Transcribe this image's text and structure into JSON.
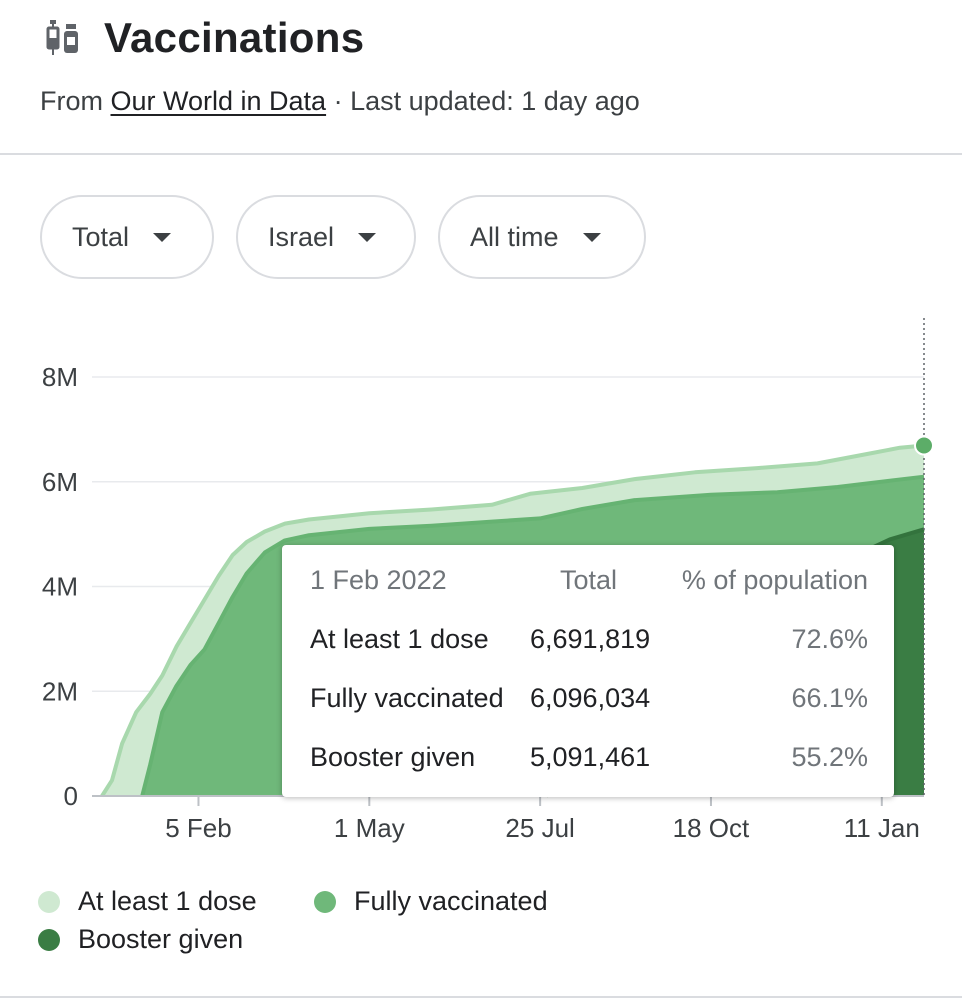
{
  "header": {
    "title": "Vaccinations",
    "icon": "vaccine-icon",
    "source_prefix": "From ",
    "source_link": "Our World in Data",
    "updated": " · Last updated: 1 day ago"
  },
  "filters": [
    {
      "label": "Total"
    },
    {
      "label": "Israel"
    },
    {
      "label": "All time"
    }
  ],
  "tooltip": {
    "date": "1 Feb 2022",
    "col_total": "Total",
    "col_pct": "% of population",
    "rows": [
      {
        "label": "At least 1 dose",
        "total": "6,691,819",
        "pct": "72.6%"
      },
      {
        "label": "Fully vaccinated",
        "total": "6,096,034",
        "pct": "66.1%"
      },
      {
        "label": "Booster given",
        "total": "5,091,461",
        "pct": "55.2%"
      }
    ]
  },
  "chart_data": {
    "type": "area",
    "title": "",
    "xlabel": "",
    "ylabel": "",
    "y_ticks": [
      {
        "value": 0,
        "label": "0"
      },
      {
        "value": 2000000,
        "label": "2M"
      },
      {
        "value": 4000000,
        "label": "4M"
      },
      {
        "value": 6000000,
        "label": "6M"
      },
      {
        "value": 8000000,
        "label": "8M"
      }
    ],
    "ylim": [
      0,
      8000000
    ],
    "x_range": [
      "2020-12-19",
      "2022-02-01"
    ],
    "x_ticks": [
      {
        "date": "2021-02-05",
        "label": "5 Feb"
      },
      {
        "date": "2021-05-01",
        "label": "1 May"
      },
      {
        "date": "2021-07-25",
        "label": "25 Jul"
      },
      {
        "date": "2021-10-18",
        "label": "18 Oct"
      },
      {
        "date": "2022-01-11",
        "label": "11 Jan"
      }
    ],
    "grid": true,
    "legend": "bottom",
    "highlight": {
      "date": "2022-02-01",
      "series": "At least 1 dose",
      "value": 6691819
    },
    "series": [
      {
        "name": "At least 1 dose",
        "color": "#b7dfbb",
        "points": [
          [
            "2020-12-19",
            0
          ],
          [
            "2020-12-24",
            300000
          ],
          [
            "2020-12-29",
            1000000
          ],
          [
            "2021-01-05",
            1600000
          ],
          [
            "2021-01-12",
            1950000
          ],
          [
            "2021-01-18",
            2300000
          ],
          [
            "2021-01-25",
            2850000
          ],
          [
            "2021-02-01",
            3300000
          ],
          [
            "2021-02-08",
            3750000
          ],
          [
            "2021-02-15",
            4200000
          ],
          [
            "2021-02-22",
            4600000
          ],
          [
            "2021-03-01",
            4850000
          ],
          [
            "2021-03-10",
            5050000
          ],
          [
            "2021-03-20",
            5200000
          ],
          [
            "2021-04-01",
            5280000
          ],
          [
            "2021-05-01",
            5400000
          ],
          [
            "2021-06-01",
            5470000
          ],
          [
            "2021-07-01",
            5560000
          ],
          [
            "2021-07-20",
            5770000
          ],
          [
            "2021-08-15",
            5880000
          ],
          [
            "2021-09-10",
            6050000
          ],
          [
            "2021-10-10",
            6180000
          ],
          [
            "2021-11-10",
            6260000
          ],
          [
            "2021-12-10",
            6350000
          ],
          [
            "2022-01-05",
            6540000
          ],
          [
            "2022-01-20",
            6650000
          ],
          [
            "2022-02-01",
            6691819
          ]
        ]
      },
      {
        "name": "Fully vaccinated",
        "color": "#6fb87a",
        "points": [
          [
            "2021-01-08",
            0
          ],
          [
            "2021-01-12",
            600000
          ],
          [
            "2021-01-18",
            1600000
          ],
          [
            "2021-01-25",
            2100000
          ],
          [
            "2021-02-01",
            2500000
          ],
          [
            "2021-02-08",
            2800000
          ],
          [
            "2021-02-15",
            3300000
          ],
          [
            "2021-02-22",
            3800000
          ],
          [
            "2021-03-01",
            4250000
          ],
          [
            "2021-03-10",
            4650000
          ],
          [
            "2021-03-20",
            4880000
          ],
          [
            "2021-04-01",
            4980000
          ],
          [
            "2021-05-01",
            5100000
          ],
          [
            "2021-06-01",
            5160000
          ],
          [
            "2021-07-01",
            5240000
          ],
          [
            "2021-07-25",
            5300000
          ],
          [
            "2021-08-15",
            5480000
          ],
          [
            "2021-09-10",
            5650000
          ],
          [
            "2021-10-18",
            5750000
          ],
          [
            "2021-11-20",
            5800000
          ],
          [
            "2021-12-20",
            5900000
          ],
          [
            "2022-01-15",
            6020000
          ],
          [
            "2022-02-01",
            6096034
          ]
        ]
      },
      {
        "name": "Booster given",
        "color": "#3a7d44",
        "points": [
          [
            "2021-07-28",
            0
          ],
          [
            "2021-08-05",
            400000
          ],
          [
            "2021-08-15",
            1500000
          ],
          [
            "2021-08-25",
            2500000
          ],
          [
            "2021-09-05",
            3400000
          ],
          [
            "2021-09-20",
            3800000
          ],
          [
            "2021-10-10",
            4000000
          ],
          [
            "2021-11-10",
            4100000
          ],
          [
            "2021-12-10",
            4250000
          ],
          [
            "2022-01-01",
            4650000
          ],
          [
            "2022-01-15",
            4900000
          ],
          [
            "2022-02-01",
            5091461
          ]
        ]
      }
    ]
  }
}
